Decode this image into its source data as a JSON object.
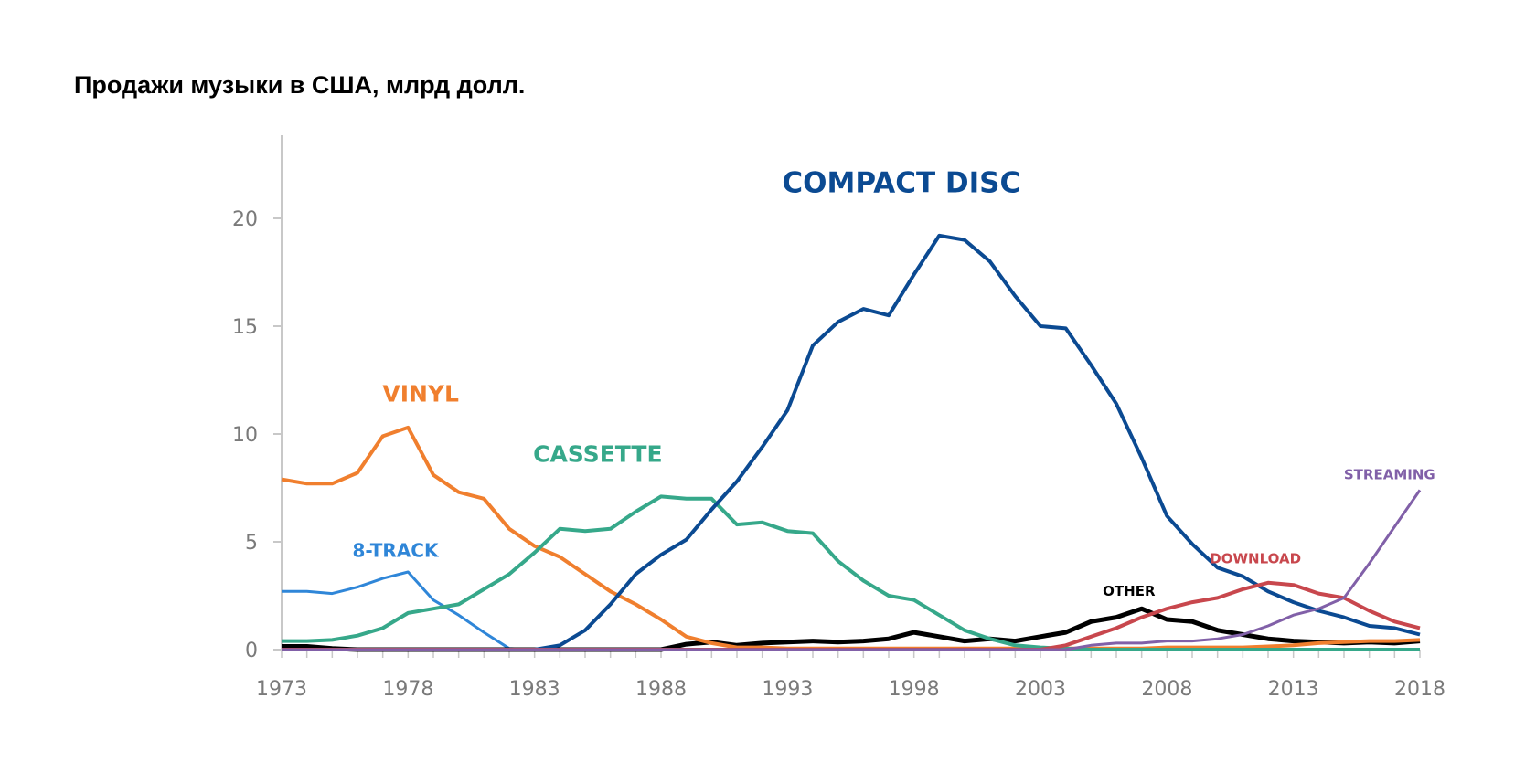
{
  "title": "Продажи музыки в США, млрд долл.",
  "chart_data": {
    "type": "line",
    "title": "Продажи музыки в США, млрд долл.",
    "xlabel": "",
    "ylabel": "",
    "xlim": [
      1973,
      2018
    ],
    "ylim": [
      0,
      23
    ],
    "grid": false,
    "x_ticks": [
      1973,
      1978,
      1983,
      1988,
      1993,
      1998,
      2003,
      2008,
      2013,
      2018
    ],
    "x_tick_labels": [
      "1973",
      "1978",
      "1983",
      "1988",
      "1993",
      "1998",
      "2003",
      "2008",
      "2013",
      "2018"
    ],
    "y_ticks": [
      0,
      5,
      10,
      15,
      20
    ],
    "y_tick_labels": [
      "0",
      "5",
      "10",
      "15",
      "20"
    ],
    "x": [
      1973,
      1974,
      1975,
      1976,
      1977,
      1978,
      1979,
      1980,
      1981,
      1982,
      1983,
      1984,
      1985,
      1986,
      1987,
      1988,
      1989,
      1990,
      1991,
      1992,
      1993,
      1994,
      1995,
      1996,
      1997,
      1998,
      1999,
      2000,
      2001,
      2002,
      2003,
      2004,
      2005,
      2006,
      2007,
      2008,
      2009,
      2010,
      2011,
      2012,
      2013,
      2014,
      2015,
      2016,
      2017,
      2018
    ],
    "series": [
      {
        "name": "8-TRACK",
        "color": "#2f86d8",
        "values": [
          2.7,
          2.7,
          2.6,
          2.9,
          3.3,
          3.6,
          2.3,
          1.6,
          0.8,
          0.05,
          0,
          0,
          0,
          0,
          0,
          0,
          0,
          0,
          0,
          0,
          0,
          0,
          0,
          0,
          0,
          0,
          0,
          0,
          0,
          0,
          0,
          0,
          0,
          0,
          0,
          0,
          0,
          0,
          0,
          0,
          0,
          0,
          0,
          0,
          0,
          0
        ]
      },
      {
        "name": "OTHER",
        "color": "#000000",
        "values": [
          0.15,
          0.15,
          0.05,
          0,
          0,
          0,
          0,
          0,
          0,
          0,
          0,
          0,
          0,
          0,
          0,
          0,
          0.25,
          0.35,
          0.2,
          0.3,
          0.35,
          0.4,
          0.35,
          0.4,
          0.5,
          0.8,
          0.6,
          0.4,
          0.5,
          0.4,
          0.6,
          0.8,
          1.3,
          1.5,
          1.9,
          1.4,
          1.3,
          0.9,
          0.7,
          0.5,
          0.4,
          0.35,
          0.3,
          0.35,
          0.3,
          0.4
        ]
      },
      {
        "name": "VINYL",
        "color": "#f07f2e",
        "values": [
          7.9,
          7.7,
          7.7,
          8.2,
          9.9,
          10.3,
          8.1,
          7.3,
          7.0,
          5.6,
          4.8,
          4.3,
          3.5,
          2.7,
          2.1,
          1.4,
          0.6,
          0.3,
          0.1,
          0.1,
          0.05,
          0.05,
          0.05,
          0.05,
          0.05,
          0.05,
          0.05,
          0.05,
          0.05,
          0.05,
          0.05,
          0.05,
          0.05,
          0.05,
          0.05,
          0.1,
          0.1,
          0.1,
          0.1,
          0.15,
          0.2,
          0.3,
          0.35,
          0.4,
          0.4,
          0.45
        ]
      },
      {
        "name": "CASSETTE",
        "color": "#36a88a",
        "values": [
          0.4,
          0.4,
          0.45,
          0.65,
          1.0,
          1.7,
          1.9,
          2.1,
          2.8,
          3.5,
          4.5,
          5.6,
          5.5,
          5.6,
          6.4,
          7.1,
          7.0,
          7.0,
          5.8,
          5.9,
          5.5,
          5.4,
          4.1,
          3.2,
          2.5,
          2.3,
          1.6,
          0.9,
          0.5,
          0.2,
          0.1,
          0.05,
          0,
          0,
          0,
          0,
          0,
          0,
          0,
          0,
          0,
          0,
          0,
          0,
          0,
          0
        ]
      },
      {
        "name": "COMPACT DISC",
        "color": "#0b4a92",
        "values": [
          0,
          0,
          0,
          0,
          0,
          0,
          0,
          0,
          0,
          0,
          0,
          0.2,
          0.9,
          2.1,
          3.5,
          4.4,
          5.1,
          6.5,
          7.8,
          9.4,
          11.1,
          14.1,
          15.2,
          15.8,
          15.5,
          17.4,
          19.2,
          19.0,
          18.0,
          16.4,
          15.0,
          14.9,
          13.2,
          11.4,
          8.9,
          6.2,
          4.9,
          3.8,
          3.4,
          2.7,
          2.2,
          1.8,
          1.5,
          1.1,
          1.0,
          0.7
        ]
      },
      {
        "name": "DOWNLOAD",
        "color": "#c8474d",
        "values": [
          0,
          0,
          0,
          0,
          0,
          0,
          0,
          0,
          0,
          0,
          0,
          0,
          0,
          0,
          0,
          0,
          0,
          0,
          0,
          0,
          0,
          0,
          0,
          0,
          0,
          0,
          0,
          0,
          0,
          0,
          0,
          0.2,
          0.6,
          1.0,
          1.5,
          1.9,
          2.2,
          2.4,
          2.8,
          3.1,
          3.0,
          2.6,
          2.4,
          1.8,
          1.3,
          1.0
        ]
      },
      {
        "name": "STREAMING",
        "color": "#8160a8",
        "values": [
          0,
          0,
          0,
          0,
          0,
          0,
          0,
          0,
          0,
          0,
          0,
          0,
          0,
          0,
          0,
          0,
          0,
          0,
          0,
          0,
          0,
          0,
          0,
          0,
          0,
          0,
          0,
          0,
          0,
          0,
          0,
          0,
          0.2,
          0.3,
          0.3,
          0.4,
          0.4,
          0.5,
          0.7,
          1.1,
          1.6,
          1.9,
          2.4,
          4.0,
          5.7,
          7.4
        ]
      }
    ],
    "annotations": [
      {
        "text": "COMPACT DISC",
        "series": "COMPACT DISC",
        "x": 1997.5,
        "y": 21.2,
        "size": "large"
      },
      {
        "text": "VINYL",
        "series": "VINYL",
        "x": 1978.5,
        "y": 11.5,
        "size": "medium"
      },
      {
        "text": "CASSETTE",
        "series": "CASSETTE",
        "x": 1985.5,
        "y": 8.7,
        "size": "medium"
      },
      {
        "text": "8-TRACK",
        "series": "8-TRACK",
        "x": 1977.5,
        "y": 4.3,
        "size": "small"
      },
      {
        "text": "OTHER",
        "series": "OTHER",
        "x": 2006.5,
        "y": 2.5,
        "size": "xsmall"
      },
      {
        "text": "DOWNLOAD",
        "series": "DOWNLOAD",
        "x": 2011.5,
        "y": 4.0,
        "size": "xsmall"
      },
      {
        "text": "STREAMING",
        "series": "STREAMING",
        "x": 2016.8,
        "y": 7.9,
        "size": "xsmall"
      }
    ],
    "legend": "none (inline labels)"
  }
}
